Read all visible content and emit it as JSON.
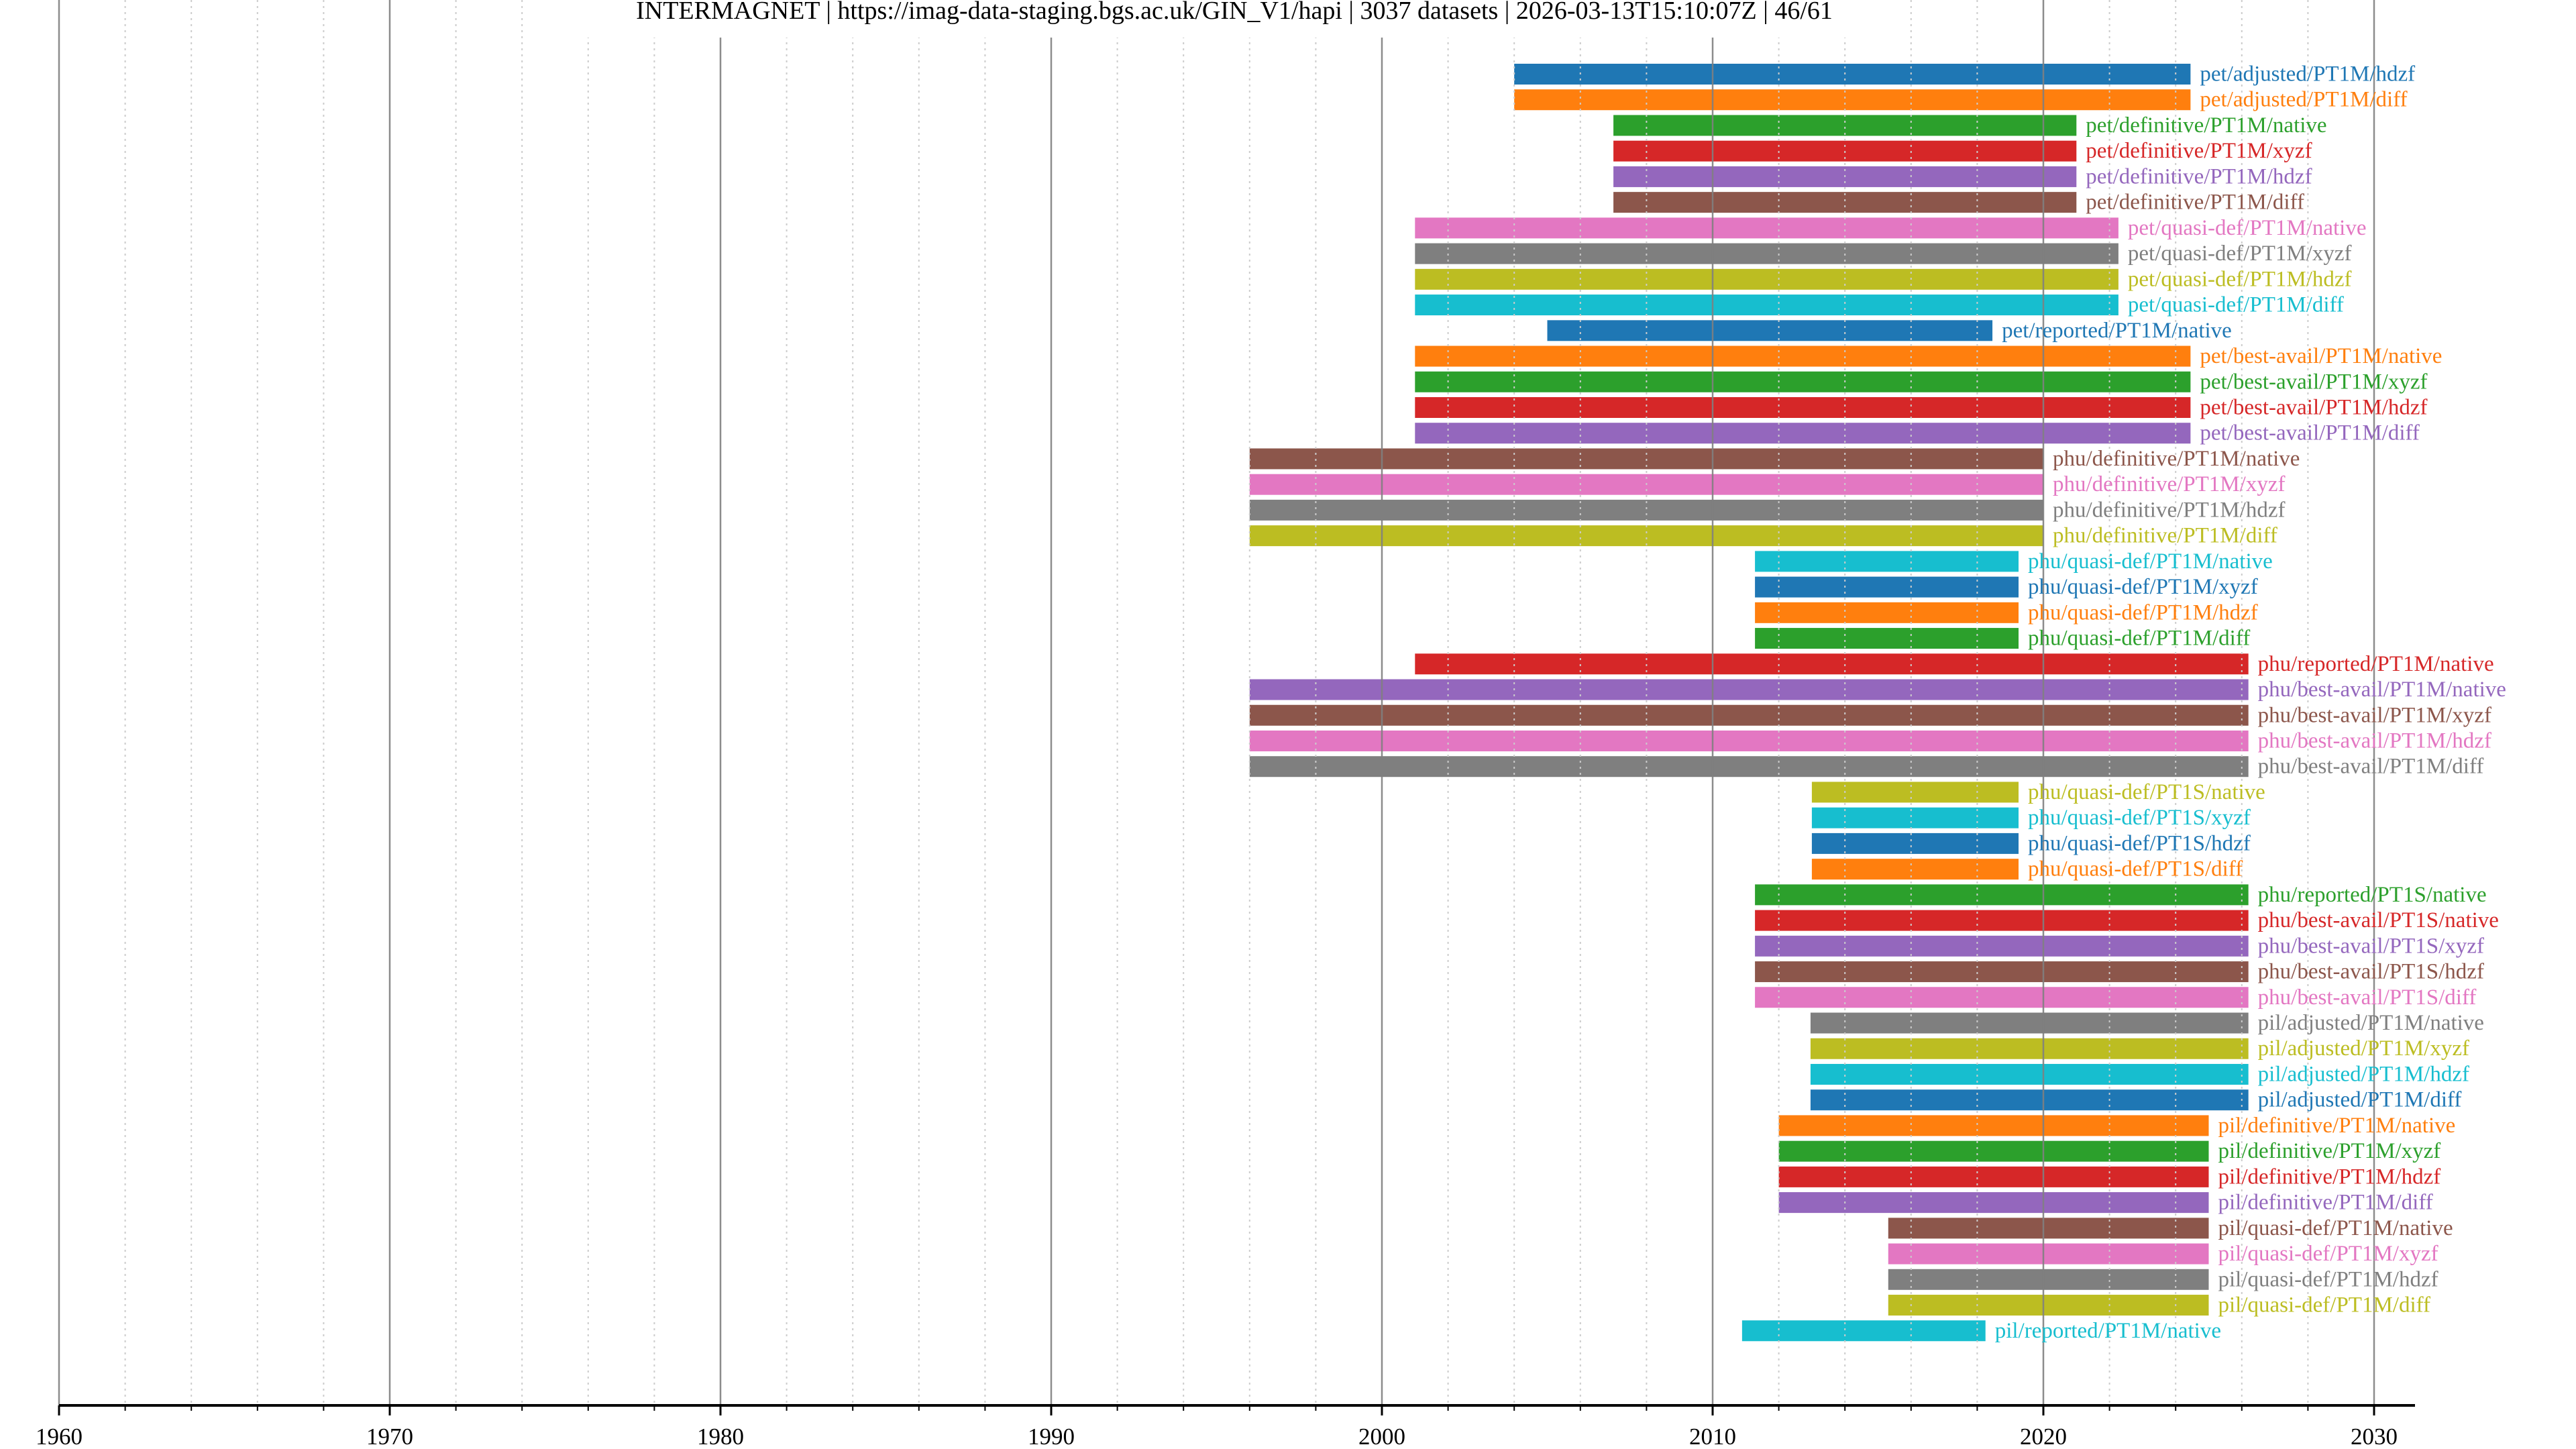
{
  "window": {
    "title": "INTERMAGNET | https://imag-data-staging.bgs.ac.uk/GIN_V1/hapi | 3037 datasets | 2026-03-13T15:10:07Z | 46/61"
  },
  "chart_data": {
    "type": "timeline",
    "title": "INTERMAGNET | https://imag-data-staging.bgs.ac.uk/GIN_V1/hapi | 3037 datasets | 2026-03-13T15:10:07Z | 46/61",
    "xlabel": "",
    "ylabel": "",
    "xlim": [
      1960,
      2031.2
    ],
    "x_ticks": [
      1960,
      1970,
      1980,
      1990,
      2000,
      2010,
      2020,
      2030
    ],
    "x_tick_labels": [
      "1960",
      "1970",
      "1980",
      "1990",
      "2000",
      "2010",
      "2020",
      "2030"
    ],
    "x_minor_tick_step": 2,
    "grid": {
      "major": true,
      "minor": true
    },
    "palette": [
      "#1f77b4",
      "#ff7f0e",
      "#2ca02c",
      "#d62728",
      "#9467bd",
      "#8c564b",
      "#e377c2",
      "#7f7f7f",
      "#bcbd22",
      "#17becf"
    ],
    "series": [
      {
        "name": "pet/adjusted/PT1M/hdzf",
        "start": 2004.0,
        "end": 2024.45
      },
      {
        "name": "pet/adjusted/PT1M/diff",
        "start": 2004.0,
        "end": 2024.45
      },
      {
        "name": "pet/definitive/PT1M/native",
        "start": 2007.0,
        "end": 2021.0
      },
      {
        "name": "pet/definitive/PT1M/xyzf",
        "start": 2007.0,
        "end": 2021.0
      },
      {
        "name": "pet/definitive/PT1M/hdzf",
        "start": 2007.0,
        "end": 2021.0
      },
      {
        "name": "pet/definitive/PT1M/diff",
        "start": 2007.0,
        "end": 2021.0
      },
      {
        "name": "pet/quasi-def/PT1M/native",
        "start": 2001.0,
        "end": 2022.27
      },
      {
        "name": "pet/quasi-def/PT1M/xyzf",
        "start": 2001.0,
        "end": 2022.27
      },
      {
        "name": "pet/quasi-def/PT1M/hdzf",
        "start": 2001.0,
        "end": 2022.27
      },
      {
        "name": "pet/quasi-def/PT1M/diff",
        "start": 2001.0,
        "end": 2022.27
      },
      {
        "name": "pet/reported/PT1M/native",
        "start": 2005.0,
        "end": 2018.46
      },
      {
        "name": "pet/best-avail/PT1M/native",
        "start": 2001.0,
        "end": 2024.45
      },
      {
        "name": "pet/best-avail/PT1M/xyzf",
        "start": 2001.0,
        "end": 2024.45
      },
      {
        "name": "pet/best-avail/PT1M/hdzf",
        "start": 2001.0,
        "end": 2024.45
      },
      {
        "name": "pet/best-avail/PT1M/diff",
        "start": 2001.0,
        "end": 2024.45
      },
      {
        "name": "phu/definitive/PT1M/native",
        "start": 1996.0,
        "end": 2020.0
      },
      {
        "name": "phu/definitive/PT1M/xyzf",
        "start": 1996.0,
        "end": 2020.0
      },
      {
        "name": "phu/definitive/PT1M/hdzf",
        "start": 1996.0,
        "end": 2020.0
      },
      {
        "name": "phu/definitive/PT1M/diff",
        "start": 1996.0,
        "end": 2020.0
      },
      {
        "name": "phu/quasi-def/PT1M/native",
        "start": 2011.28,
        "end": 2019.25
      },
      {
        "name": "phu/quasi-def/PT1M/xyzf",
        "start": 2011.28,
        "end": 2019.25
      },
      {
        "name": "phu/quasi-def/PT1M/hdzf",
        "start": 2011.28,
        "end": 2019.25
      },
      {
        "name": "phu/quasi-def/PT1M/diff",
        "start": 2011.28,
        "end": 2019.25
      },
      {
        "name": "phu/reported/PT1M/native",
        "start": 2001.0,
        "end": 2026.2
      },
      {
        "name": "phu/best-avail/PT1M/native",
        "start": 1996.0,
        "end": 2026.2
      },
      {
        "name": "phu/best-avail/PT1M/xyzf",
        "start": 1996.0,
        "end": 2026.2
      },
      {
        "name": "phu/best-avail/PT1M/hdzf",
        "start": 1996.0,
        "end": 2026.2
      },
      {
        "name": "phu/best-avail/PT1M/diff",
        "start": 1996.0,
        "end": 2026.2
      },
      {
        "name": "phu/quasi-def/PT1S/native",
        "start": 2013.0,
        "end": 2019.25
      },
      {
        "name": "phu/quasi-def/PT1S/xyzf",
        "start": 2013.0,
        "end": 2019.25
      },
      {
        "name": "phu/quasi-def/PT1S/hdzf",
        "start": 2013.0,
        "end": 2019.25
      },
      {
        "name": "phu/quasi-def/PT1S/diff",
        "start": 2013.0,
        "end": 2019.25
      },
      {
        "name": "phu/reported/PT1S/native",
        "start": 2011.28,
        "end": 2026.2
      },
      {
        "name": "phu/best-avail/PT1S/native",
        "start": 2011.28,
        "end": 2026.2
      },
      {
        "name": "phu/best-avail/PT1S/xyzf",
        "start": 2011.28,
        "end": 2026.2
      },
      {
        "name": "phu/best-avail/PT1S/hdzf",
        "start": 2011.28,
        "end": 2026.2
      },
      {
        "name": "phu/best-avail/PT1S/diff",
        "start": 2011.28,
        "end": 2026.2
      },
      {
        "name": "pil/adjusted/PT1M/native",
        "start": 2012.96,
        "end": 2026.2
      },
      {
        "name": "pil/adjusted/PT1M/xyzf",
        "start": 2012.96,
        "end": 2026.2
      },
      {
        "name": "pil/adjusted/PT1M/hdzf",
        "start": 2012.96,
        "end": 2026.2
      },
      {
        "name": "pil/adjusted/PT1M/diff",
        "start": 2012.96,
        "end": 2026.2
      },
      {
        "name": "pil/definitive/PT1M/native",
        "start": 2012.0,
        "end": 2025.0
      },
      {
        "name": "pil/definitive/PT1M/xyzf",
        "start": 2012.0,
        "end": 2025.0
      },
      {
        "name": "pil/definitive/PT1M/hdzf",
        "start": 2012.0,
        "end": 2025.0
      },
      {
        "name": "pil/definitive/PT1M/diff",
        "start": 2012.0,
        "end": 2025.0
      },
      {
        "name": "pil/quasi-def/PT1M/native",
        "start": 2015.31,
        "end": 2025.0
      },
      {
        "name": "pil/quasi-def/PT1M/xyzf",
        "start": 2015.31,
        "end": 2025.0
      },
      {
        "name": "pil/quasi-def/PT1M/hdzf",
        "start": 2015.31,
        "end": 2025.0
      },
      {
        "name": "pil/quasi-def/PT1M/diff",
        "start": 2015.31,
        "end": 2025.0
      },
      {
        "name": "pil/reported/PT1M/native",
        "start": 2010.89,
        "end": 2018.25
      }
    ]
  }
}
